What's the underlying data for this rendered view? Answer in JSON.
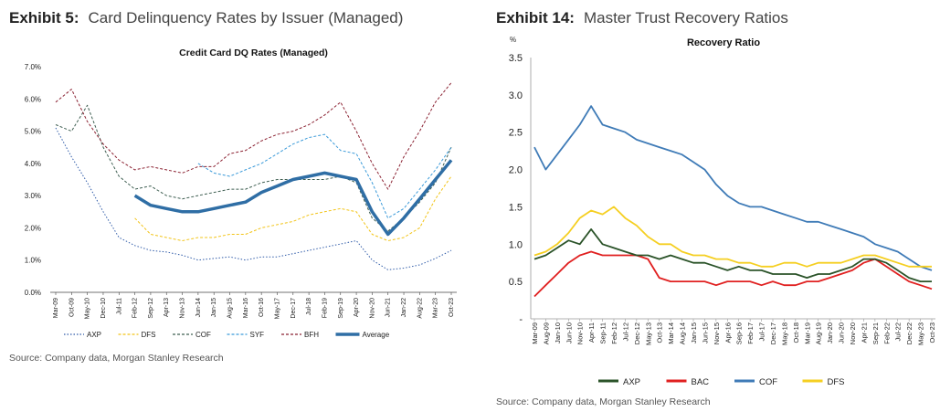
{
  "left": {
    "exhibit_label": "Exhibit 5:",
    "exhibit_title": "Card Delinquency Rates by Issuer (Managed)",
    "source": "Source: Company data, Morgan Stanley Research"
  },
  "right": {
    "exhibit_label": "Exhibit 14:",
    "exhibit_title": "Master Trust Recovery Ratios",
    "source": "Source: Company data, Morgan Stanley Research"
  },
  "colors": {
    "AXP_left": "#2e5aa8",
    "DFS_left": "#f2c418",
    "COF_left": "#3f5f52",
    "SYF": "#3a9ad9",
    "BFH": "#8b2232",
    "Average": "#2f6ea5",
    "AXP_right": "#2b5329",
    "BAC": "#e02020",
    "COF_right": "#3f7bb7",
    "DFS_right": "#f5cf22"
  },
  "chart_data": [
    {
      "type": "line",
      "title": "Credit Card DQ Rates (Managed)",
      "xlabel": "",
      "ylabel": "",
      "ylim": [
        0,
        7
      ],
      "y_ticks": [
        "0.0%",
        "1.0%",
        "2.0%",
        "3.0%",
        "4.0%",
        "5.0%",
        "6.0%",
        "7.0%"
      ],
      "x_ticks": [
        "Mar-09",
        "Oct-09",
        "May-10",
        "Dec-10",
        "Jul-11",
        "Feb-12",
        "Sep-12",
        "Apr-13",
        "Nov-13",
        "Jun-14",
        "Jan-15",
        "Aug-15",
        "Mar-16",
        "Oct-16",
        "May-17",
        "Dec-17",
        "Jul-18",
        "Feb-19",
        "Sep-19",
        "Apr-20",
        "Nov-20",
        "Jun-21",
        "Jan-22",
        "Aug-22",
        "Mar-23",
        "Oct-23"
      ],
      "legend": [
        "AXP",
        "DFS",
        "COF",
        "SYF",
        "BFH",
        "Average"
      ],
      "series": [
        {
          "name": "AXP",
          "style": "dotted",
          "values": [
            5.1,
            4.2,
            3.4,
            2.5,
            1.7,
            1.45,
            1.3,
            1.25,
            1.15,
            1.0,
            1.05,
            1.1,
            1.0,
            1.1,
            1.1,
            1.2,
            1.3,
            1.4,
            1.5,
            1.6,
            1.0,
            0.7,
            0.75,
            0.85,
            1.05,
            1.3
          ]
        },
        {
          "name": "DFS",
          "style": "dashed",
          "start": 5,
          "values": [
            null,
            null,
            null,
            null,
            null,
            2.3,
            1.8,
            1.7,
            1.6,
            1.7,
            1.7,
            1.8,
            1.8,
            2.0,
            2.1,
            2.2,
            2.4,
            2.5,
            2.6,
            2.5,
            1.8,
            1.6,
            1.7,
            2.0,
            2.9,
            3.6
          ]
        },
        {
          "name": "COF",
          "style": "dashed",
          "values": [
            5.2,
            5.0,
            5.8,
            4.5,
            3.6,
            3.2,
            3.3,
            3.0,
            2.9,
            3.0,
            3.1,
            3.2,
            3.2,
            3.4,
            3.5,
            3.5,
            3.5,
            3.5,
            3.6,
            3.4,
            2.3,
            1.9,
            2.3,
            2.8,
            3.4,
            4.5
          ]
        },
        {
          "name": "SYF",
          "style": "dashed",
          "start": 9,
          "values": [
            null,
            null,
            null,
            null,
            null,
            null,
            null,
            null,
            null,
            4.0,
            3.7,
            3.6,
            3.8,
            4.0,
            4.3,
            4.6,
            4.8,
            4.9,
            4.4,
            4.3,
            3.4,
            2.3,
            2.6,
            3.2,
            3.8,
            4.5
          ]
        },
        {
          "name": "BFH",
          "style": "dashed",
          "values": [
            5.9,
            6.3,
            5.3,
            4.6,
            4.1,
            3.8,
            3.9,
            3.8,
            3.7,
            3.9,
            3.9,
            4.3,
            4.4,
            4.7,
            4.9,
            5.0,
            5.2,
            5.5,
            5.9,
            5.0,
            4.0,
            3.2,
            4.2,
            5.0,
            5.9,
            6.5
          ]
        },
        {
          "name": "Average",
          "style": "solid-thick",
          "start": 5,
          "values": [
            null,
            null,
            null,
            null,
            null,
            3.0,
            2.7,
            2.6,
            2.5,
            2.5,
            2.6,
            2.7,
            2.8,
            3.1,
            3.3,
            3.5,
            3.6,
            3.7,
            3.6,
            3.5,
            2.5,
            1.8,
            2.3,
            2.9,
            3.5,
            4.1
          ]
        }
      ]
    },
    {
      "type": "line",
      "title": "Recovery Ratio",
      "ylabel": "%",
      "ylim": [
        0,
        3.5
      ],
      "y_ticks": [
        "-",
        "0.5",
        "1.0",
        "1.5",
        "2.0",
        "2.5",
        "3.0",
        "3.5"
      ],
      "x_ticks": [
        "Mar-09",
        "Aug-09",
        "Jan-10",
        "Jun-10",
        "Nov-10",
        "Apr-11",
        "Sep-11",
        "Feb-12",
        "Jul-12",
        "Dec-12",
        "May-13",
        "Oct-13",
        "Mar-14",
        "Aug-14",
        "Jan-15",
        "Jun-15",
        "Nov-15",
        "Apr-16",
        "Sep-16",
        "Feb-17",
        "Jul-17",
        "Dec-17",
        "May-18",
        "Oct-18",
        "Mar-19",
        "Aug-19",
        "Jan-20",
        "Jun-20",
        "Nov-20",
        "Apr-21",
        "Sep-21",
        "Feb-22",
        "Jul-22",
        "Dec-22",
        "May-23",
        "Oct-23"
      ],
      "legend": [
        "AXP",
        "BAC",
        "COF",
        "DFS"
      ],
      "series": [
        {
          "name": "AXP",
          "values": [
            0.8,
            0.85,
            0.95,
            1.05,
            1.0,
            1.2,
            1.0,
            0.95,
            0.9,
            0.85,
            0.85,
            0.8,
            0.85,
            0.8,
            0.75,
            0.75,
            0.7,
            0.65,
            0.7,
            0.65,
            0.65,
            0.6,
            0.6,
            0.6,
            0.55,
            0.6,
            0.6,
            0.65,
            0.7,
            0.8,
            0.8,
            0.75,
            0.65,
            0.55,
            0.5,
            0.5
          ]
        },
        {
          "name": "BAC",
          "values": [
            0.3,
            0.45,
            0.6,
            0.75,
            0.85,
            0.9,
            0.85,
            0.85,
            0.85,
            0.85,
            0.8,
            0.55,
            0.5,
            0.5,
            0.5,
            0.5,
            0.45,
            0.5,
            0.5,
            0.5,
            0.45,
            0.5,
            0.45,
            0.45,
            0.5,
            0.5,
            0.55,
            0.6,
            0.65,
            0.75,
            0.8,
            0.7,
            0.6,
            0.5,
            0.45,
            0.4
          ]
        },
        {
          "name": "COF",
          "values": [
            2.3,
            2.0,
            2.2,
            2.4,
            2.6,
            2.85,
            2.6,
            2.55,
            2.5,
            2.4,
            2.35,
            2.3,
            2.25,
            2.2,
            2.1,
            2.0,
            1.8,
            1.65,
            1.55,
            1.5,
            1.5,
            1.45,
            1.4,
            1.35,
            1.3,
            1.3,
            1.25,
            1.2,
            1.15,
            1.1,
            1.0,
            0.95,
            0.9,
            0.8,
            0.7,
            0.65
          ]
        },
        {
          "name": "DFS",
          "values": [
            0.85,
            0.9,
            1.0,
            1.15,
            1.35,
            1.45,
            1.4,
            1.5,
            1.35,
            1.25,
            1.1,
            1.0,
            1.0,
            0.9,
            0.85,
            0.85,
            0.8,
            0.8,
            0.75,
            0.75,
            0.7,
            0.7,
            0.75,
            0.75,
            0.7,
            0.75,
            0.75,
            0.75,
            0.8,
            0.85,
            0.85,
            0.8,
            0.75,
            0.7,
            0.7,
            0.7
          ]
        }
      ]
    }
  ]
}
